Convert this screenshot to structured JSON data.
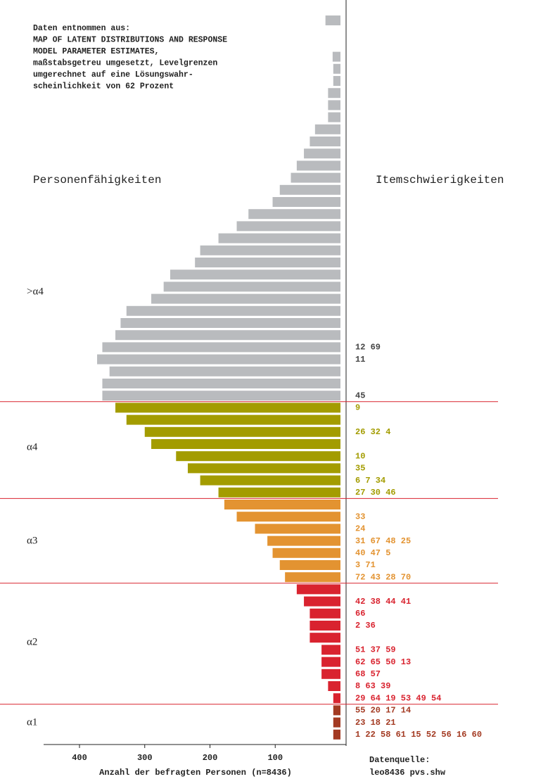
{
  "chart_data": {
    "type": "bar",
    "orientation": "horizontal",
    "note": [
      "Daten entnommen aus:",
      "MAP OF LATENT DISTRIBUTIONS AND RESPONSE",
      "MODEL PARAMETER ESTIMATES,",
      "maßstabsgetreu umgesetzt, Levelgrenzen",
      "umgerechnet auf eine Lösungswahr-",
      "scheinlichkeit von 62 Prozent"
    ],
    "left_heading": "Personenfähigkeiten",
    "right_heading": "Itemschwierigkeiten",
    "xlabel": "Anzahl der befragten Personen (n=8436)",
    "source": [
      "Datenquelle:",
      "leo8436 pvs.shw"
    ],
    "xlim": [
      0,
      455
    ],
    "xticks": [
      100,
      200,
      300,
      400
    ],
    "x_reversed": true,
    "series": [
      {
        "name": ">α4",
        "color": "#b9bbbe",
        "values": [
          23,
          null,
          null,
          12,
          11,
          11,
          19,
          19,
          19,
          39,
          47,
          56,
          67,
          76,
          93,
          104,
          141,
          159,
          187,
          215,
          223,
          261,
          271,
          290,
          328,
          337,
          345,
          365,
          373,
          354,
          365,
          365,
          null,
          null,
          null,
          null,
          null,
          null,
          null,
          null,
          null,
          null,
          null,
          null,
          null,
          null,
          null,
          null,
          null,
          null,
          null,
          null,
          null,
          null,
          null,
          null,
          null,
          null,
          null,
          null
        ]
      },
      {
        "name": "α4",
        "color": "#a39c00",
        "values": [
          null,
          null,
          null,
          null,
          null,
          null,
          null,
          null,
          null,
          null,
          null,
          null,
          null,
          null,
          null,
          null,
          null,
          null,
          null,
          null,
          null,
          null,
          null,
          null,
          null,
          null,
          null,
          null,
          null,
          null,
          null,
          null,
          345,
          328,
          300,
          290,
          252,
          234,
          215,
          187,
          null,
          null,
          null,
          null,
          null,
          null,
          null,
          null,
          null,
          null,
          null,
          null,
          null,
          null,
          null,
          null,
          null,
          null,
          null,
          null
        ]
      },
      {
        "name": "α3",
        "color": "#e39331",
        "values": [
          null,
          null,
          null,
          null,
          null,
          null,
          null,
          null,
          null,
          null,
          null,
          null,
          null,
          null,
          null,
          null,
          null,
          null,
          null,
          null,
          null,
          null,
          null,
          null,
          null,
          null,
          null,
          null,
          null,
          null,
          null,
          null,
          null,
          null,
          null,
          null,
          null,
          null,
          null,
          null,
          178,
          159,
          131,
          112,
          104,
          93,
          85,
          null,
          null,
          null,
          null,
          null,
          null,
          null,
          null,
          null,
          null,
          null,
          null,
          null
        ]
      },
      {
        "name": "α2",
        "color": "#d9232f",
        "values": [
          null,
          null,
          null,
          null,
          null,
          null,
          null,
          null,
          null,
          null,
          null,
          null,
          null,
          null,
          null,
          null,
          null,
          null,
          null,
          null,
          null,
          null,
          null,
          null,
          null,
          null,
          null,
          null,
          null,
          null,
          null,
          null,
          null,
          null,
          null,
          null,
          null,
          null,
          null,
          null,
          null,
          null,
          null,
          null,
          null,
          null,
          null,
          67,
          56,
          47,
          47,
          47,
          29,
          29,
          29,
          19,
          11,
          null,
          null,
          null
        ]
      },
      {
        "name": "α1",
        "color": "#a33a22",
        "values": [
          null,
          null,
          null,
          null,
          null,
          null,
          null,
          null,
          null,
          null,
          null,
          null,
          null,
          null,
          null,
          null,
          null,
          null,
          null,
          null,
          null,
          null,
          null,
          null,
          null,
          null,
          null,
          null,
          null,
          null,
          null,
          null,
          null,
          null,
          null,
          null,
          null,
          null,
          null,
          null,
          null,
          null,
          null,
          null,
          null,
          null,
          null,
          null,
          null,
          null,
          null,
          null,
          null,
          null,
          null,
          null,
          null,
          11,
          11,
          11
        ]
      }
    ],
    "item_labels": [
      null,
      null,
      null,
      null,
      null,
      null,
      null,
      null,
      null,
      null,
      null,
      null,
      null,
      null,
      null,
      null,
      null,
      null,
      null,
      null,
      null,
      null,
      null,
      null,
      null,
      null,
      null,
      "12 69",
      "11",
      null,
      null,
      "45",
      "9",
      null,
      "26 32 4",
      null,
      "10",
      "35",
      "6 7 34",
      "27 30 46",
      null,
      "33",
      "24",
      "31 67 48 25",
      "40 47 5",
      "3 71",
      "72 43 28 70",
      null,
      "42 38 44 41",
      "66",
      "2 36",
      null,
      "51 37 59",
      "62 65 50 13",
      "68 57",
      "8 63 39",
      "29 64 19 53 49 54",
      "55 20 17 14",
      "23 18 21",
      "1 22 58 61 15 52 56 16 60"
    ],
    "boundary_color": "#d9232f"
  }
}
